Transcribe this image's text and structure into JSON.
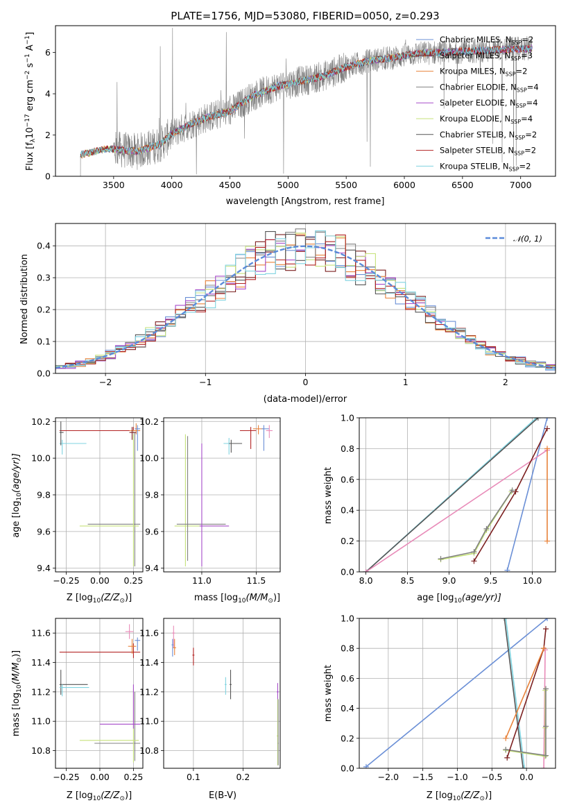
{
  "colors": {
    "chabrier_miles": "#6a8fd6",
    "salpeter_miles": "#7b1f1f",
    "kroupa_miles": "#e8823a",
    "chabrier_elodie": "#808080",
    "salpeter_elodie": "#a64bc9",
    "kroupa_elodie": "#c6e27a",
    "chabrier_stelib": "#555555",
    "salpeter_stelib": "#b22222",
    "kroupa_stelib": "#7fd3e0",
    "gauss": "#5b8bd9",
    "pink": "#e88ab8"
  },
  "chart_data": [
    {
      "id": "spectrum",
      "type": "line",
      "title": "PLATE=1756, MJD=53080, FIBERID=0050, z=0.293",
      "xlabel": "wavelength [Angstrom, rest frame]",
      "ylabel": "Flux [f",
      "ylabel_sub": "λ",
      "ylabel_rest": "10",
      "ylabel_exp1": "−17",
      "ylabel_mid": " erg cm",
      "ylabel_exp2": "−2",
      "ylabel_mid2": " s",
      "ylabel_exp3": "−1",
      "ylabel_mid3": " A",
      "ylabel_exp4": "−1",
      "ylabel_end": "]",
      "xlim": [
        3000,
        7300
      ],
      "ylim": [
        0,
        7.3
      ],
      "xticks": [
        "3500",
        "4000",
        "4500",
        "5000",
        "5500",
        "6000",
        "6500",
        "7000"
      ],
      "yticks": [
        "0",
        "2",
        "4",
        "6"
      ],
      "legend": [
        {
          "name": "Chabrier MILES, N",
          "sub": "SSP",
          "val": "=2",
          "color": "chabrier_miles"
        },
        {
          "name": "Salpeter MILES, N",
          "sub": "SSP",
          "val": "=3",
          "color": "salpeter_miles"
        },
        {
          "name": "Kroupa MILES, N",
          "sub": "SSP",
          "val": "=2",
          "color": "kroupa_miles"
        },
        {
          "name": "Chabrier ELODIE, N",
          "sub": "SSP",
          "val": "=4",
          "color": "chabrier_elodie"
        },
        {
          "name": "Salpeter ELODIE, N",
          "sub": "SSP",
          "val": "=4",
          "color": "salpeter_elodie"
        },
        {
          "name": "Kroupa ELODIE, N",
          "sub": "SSP",
          "val": "=4",
          "color": "kroupa_elodie"
        },
        {
          "name": "Chabrier STELIB, N",
          "sub": "SSP",
          "val": "=2",
          "color": "chabrier_stelib"
        },
        {
          "name": "Salpeter STELIB, N",
          "sub": "SSP",
          "val": "=2",
          "color": "salpeter_stelib"
        },
        {
          "name": "Kroupa STELIB, N",
          "sub": "SSP",
          "val": "=2",
          "color": "kroupa_stelib"
        }
      ],
      "model_trend": [
        [
          3220,
          1.05
        ],
        [
          3450,
          1.35
        ],
        [
          3700,
          1.2
        ],
        [
          3900,
          1.55
        ],
        [
          4000,
          2.05
        ],
        [
          4150,
          2.5
        ],
        [
          4300,
          2.85
        ],
        [
          4500,
          3.15
        ],
        [
          4700,
          3.9
        ],
        [
          4900,
          4.35
        ],
        [
          5100,
          4.6
        ],
        [
          5300,
          4.85
        ],
        [
          5500,
          5.3
        ],
        [
          5700,
          5.6
        ],
        [
          5900,
          5.75
        ],
        [
          6100,
          5.95
        ],
        [
          6300,
          6.0
        ],
        [
          6500,
          6.05
        ],
        [
          6700,
          6.1
        ],
        [
          7100,
          6.2
        ]
      ]
    },
    {
      "id": "residuals",
      "type": "histogram",
      "xlabel": "(data-model)/error",
      "ylabel": "Normed distribution",
      "xlim": [
        -2.5,
        2.5
      ],
      "ylim": [
        0,
        0.47
      ],
      "xticks": [
        "−2",
        "−1",
        "0",
        "1",
        "2"
      ],
      "yticks": [
        "0.0",
        "0.1",
        "0.2",
        "0.3",
        "0.4"
      ],
      "legend": "𝒩(0, 1)",
      "bin_width": 0.1
    },
    {
      "id": "age_vs_Z",
      "type": "errorbar",
      "xlabel": "Z [log",
      "xlabel_sub": "10",
      "xlabel_rest": "(Z/Z",
      "xlabel_sun": "⊙",
      "xlabel_end": ")]",
      "ylabel": "age  [log",
      "ylabel_sub": "10",
      "ylabel_rest": "(age/yr)]",
      "xlim": [
        -0.33,
        0.32
      ],
      "ylim": [
        9.38,
        10.22
      ],
      "xticks": [
        "−0.25",
        "0.00",
        "0.25"
      ],
      "yticks": [
        "9.4",
        "9.6",
        "9.8",
        "10.0",
        "10.2"
      ]
    },
    {
      "id": "age_vs_mass",
      "type": "errorbar",
      "xlabel": "mass [log",
      "xlabel_sub": "10",
      "xlabel_rest": "(M/M",
      "xlabel_sun": "⊙",
      "xlabel_end": ")]",
      "xlim": [
        10.65,
        11.72
      ],
      "ylim": [
        9.38,
        10.22
      ],
      "xticks": [
        "11.0",
        "11.5"
      ],
      "yticks": [
        "9.4",
        "9.6",
        "9.8",
        "10.0",
        "10.2"
      ]
    },
    {
      "id": "weight_vs_age",
      "type": "line",
      "xlabel": "age  [log",
      "xlabel_sub": "10",
      "xlabel_rest": "(age/yr)]",
      "ylabel": "mass weight",
      "xlim": [
        7.92,
        10.28
      ],
      "ylim": [
        0,
        1
      ],
      "xticks": [
        "8.0",
        "8.5",
        "9.0",
        "9.5",
        "10.0"
      ],
      "yticks": [
        "0.0",
        "0.2",
        "0.4",
        "0.6",
        "0.8",
        "1.0"
      ]
    },
    {
      "id": "mass_vs_Z",
      "type": "errorbar",
      "xlabel": "Z [log",
      "xlabel_sub": "10",
      "xlabel_rest": "(Z/Z",
      "xlabel_sun": "⊙",
      "xlabel_end": ")]",
      "ylabel": "mass [log",
      "ylabel_sub": "10",
      "ylabel_rest": "(M/M",
      "ylabel_sun": "⊙",
      "ylabel_end": ")]",
      "xlim": [
        -0.33,
        0.32
      ],
      "ylim": [
        10.68,
        11.7
      ],
      "xticks": [
        "−0.25",
        "0.00",
        "0.25"
      ],
      "yticks": [
        "10.8",
        "11.0",
        "11.2",
        "11.4",
        "11.6"
      ]
    },
    {
      "id": "mass_vs_ebv",
      "type": "errorbar",
      "xlabel": "E(B-V)",
      "xlim": [
        0.04,
        0.275
      ],
      "ylim": [
        10.68,
        11.7
      ],
      "xticks": [
        "0.1",
        "0.2"
      ],
      "yticks": [
        "10.8",
        "11.0",
        "11.2",
        "11.4",
        "11.6"
      ]
    },
    {
      "id": "weight_vs_Z",
      "type": "line",
      "xlabel": "Z [log",
      "xlabel_sub": "10",
      "xlabel_rest": "(Z/Z",
      "xlabel_sun": "⊙",
      "xlabel_end": ")]",
      "ylabel": "mass weight",
      "xlim": [
        -2.42,
        0.42
      ],
      "ylim": [
        0,
        1
      ],
      "xticks": [
        "−2.0",
        "−1.5",
        "−1.0",
        "−0.5",
        "0.0"
      ],
      "yticks": [
        "0.0",
        "0.2",
        "0.4",
        "0.6",
        "0.8",
        "1.0"
      ]
    }
  ]
}
